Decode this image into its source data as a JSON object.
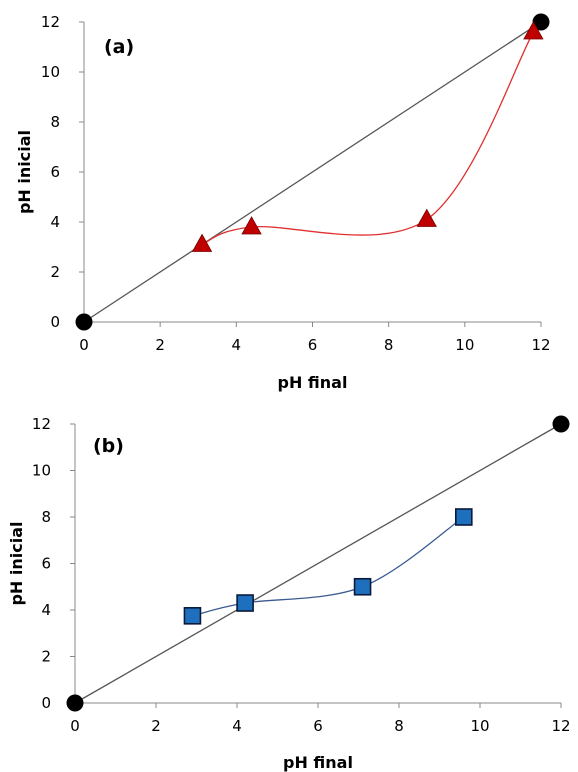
{
  "chart_data": [
    {
      "type": "scatter",
      "panel_label": "(a)",
      "xlabel": "pH final",
      "ylabel": "pH inicial",
      "xlim": [
        0,
        12
      ],
      "ylim": [
        0,
        12
      ],
      "xticks": [
        "0",
        "2",
        "4",
        "6",
        "8",
        "10",
        "12"
      ],
      "yticks": [
        "0",
        "2",
        "4",
        "6",
        "8",
        "10",
        "12"
      ],
      "grid": false,
      "series": [
        {
          "marker": "circle",
          "line": "straight",
          "color": "#000000",
          "line_color": "#555555",
          "x": [
            0,
            12
          ],
          "y": [
            0,
            12
          ]
        },
        {
          "marker": "triangle",
          "line": "smooth",
          "color": "#c00000",
          "line_color": "#e03030",
          "x": [
            3.1,
            4.4,
            9.0,
            11.8
          ],
          "y": [
            3.1,
            3.8,
            4.1,
            11.6
          ]
        }
      ]
    },
    {
      "type": "scatter",
      "panel_label": "(b)",
      "xlabel": "pH final",
      "ylabel": "pH inicial",
      "xlim": [
        0,
        12
      ],
      "ylim": [
        0,
        12
      ],
      "xticks": [
        "0",
        "2",
        "4",
        "6",
        "8",
        "10",
        "12"
      ],
      "yticks": [
        "0",
        "2",
        "4",
        "6",
        "8",
        "10",
        "12"
      ],
      "grid": false,
      "series": [
        {
          "marker": "circle",
          "line": "straight",
          "color": "#000000",
          "line_color": "#555555",
          "x": [
            0,
            12
          ],
          "y": [
            0,
            12
          ]
        },
        {
          "marker": "square",
          "line": "smooth",
          "color": "#1f6fbf",
          "line_color": "#3a5a90",
          "x": [
            2.9,
            4.2,
            7.1,
            9.6
          ],
          "y": [
            3.75,
            4.3,
            5.0,
            8.0
          ]
        }
      ]
    }
  ]
}
